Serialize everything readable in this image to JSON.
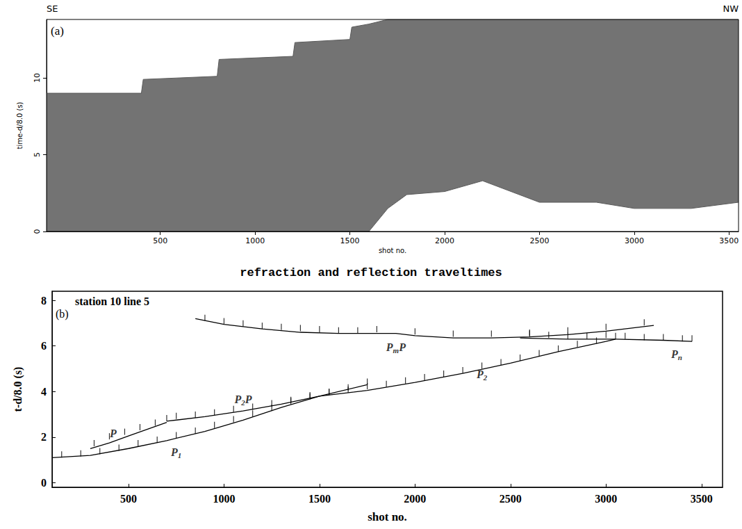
{
  "chart_data": [
    {
      "type": "area",
      "panel": "(a)",
      "annotations": [
        "SE",
        "NW"
      ],
      "xlabel": "shot no.",
      "ylabel": "time-d/8.0 (s)",
      "xlim": [
        -100,
        3550
      ],
      "ylim": [
        0,
        13.8
      ],
      "xticks": [
        500,
        1000,
        1500,
        2000,
        2500,
        3000,
        3500
      ],
      "yticks": [
        0,
        5,
        10
      ],
      "color": "#5a5a5a",
      "band": {
        "x": [
          -100,
          400,
          410,
          800,
          810,
          1200,
          1210,
          1500,
          1510,
          1600,
          1700,
          1800,
          2000,
          2200,
          2500,
          2800,
          3000,
          3300,
          3550
        ],
        "lower": [
          0,
          0,
          0,
          0,
          0,
          0,
          0,
          0,
          0,
          0,
          1.5,
          2.4,
          2.6,
          3.3,
          1.9,
          1.9,
          1.5,
          1.5,
          1.9
        ],
        "upper": [
          9.0,
          9.0,
          9.9,
          10.1,
          11.2,
          11.4,
          12.3,
          12.5,
          13.3,
          13.5,
          13.8,
          13.8,
          13.8,
          13.8,
          13.8,
          13.8,
          13.8,
          13.8,
          13.8
        ]
      }
    },
    {
      "type": "line",
      "panel": "(b)",
      "title": "refraction and reflection traveltimes",
      "annotations": [
        "station 10 line 5"
      ],
      "xlabel": "shot no.",
      "ylabel": "t-d/8.0 (s)",
      "xlim": [
        100,
        3610
      ],
      "ylim": [
        -0.2,
        8.4
      ],
      "xticks": [
        500,
        1000,
        1500,
        2000,
        2500,
        3000,
        3500
      ],
      "yticks": [
        0,
        2,
        4,
        6,
        8
      ],
      "grid": false,
      "series": [
        {
          "name": "P",
          "color": "#000000",
          "x": [
            300,
            400,
            500,
            600,
            700
          ],
          "values": [
            1.5,
            1.75,
            2.05,
            2.35,
            2.65
          ],
          "picks": {
            "x": [
              320,
              400,
              480,
              560,
              640,
              700
            ],
            "y": [
              1.6,
              1.9,
              2.1,
              2.3,
              2.5,
              2.7
            ]
          },
          "label_at": [
            420,
            2.15
          ]
        },
        {
          "name": "P1",
          "color": "#000000",
          "x": [
            100,
            300,
            500,
            700,
            900,
            1100,
            1300,
            1500
          ],
          "values": [
            1.1,
            1.2,
            1.5,
            1.85,
            2.25,
            2.75,
            3.3,
            3.8
          ],
          "picks": {
            "x": [
              150,
              250,
              350,
              450,
              550,
              650,
              750,
              850,
              950,
              1050,
              1150,
              1250,
              1350,
              1450
            ],
            "y": [
              1.1,
              1.15,
              1.25,
              1.4,
              1.6,
              1.75,
              1.95,
              2.15,
              2.4,
              2.65,
              2.9,
              3.15,
              3.45,
              3.7
            ]
          },
          "label_at": [
            750,
            1.35
          ]
        },
        {
          "name": "P2P",
          "color": "#000000",
          "x": [
            700,
            900,
            1100,
            1300,
            1500,
            1750
          ],
          "values": [
            2.7,
            2.9,
            3.15,
            3.45,
            3.8,
            4.3
          ],
          "picks": {
            "x": [
              750,
              850,
              950,
              1050,
              1150,
              1250,
              1350,
              1450,
              1550,
              1650,
              1750
            ],
            "y": [
              2.8,
              2.85,
              2.95,
              3.1,
              3.2,
              3.35,
              3.5,
              3.65,
              3.85,
              4.05,
              4.3
            ]
          },
          "label_at": [
            1100,
            3.65
          ]
        },
        {
          "name": "P2",
          "color": "#000000",
          "x": [
            1500,
            1750,
            2000,
            2250,
            2500,
            2750,
            3000,
            3050
          ],
          "values": [
            3.8,
            4.05,
            4.4,
            4.8,
            5.25,
            5.75,
            6.2,
            6.3
          ],
          "picks": {
            "x": [
              1550,
              1650,
              1750,
              1850,
              1950,
              2050,
              2150,
              2250,
              2350,
              2450,
              2550,
              2650,
              2750,
              2850,
              2950,
              3050
            ],
            "y": [
              3.85,
              3.95,
              4.1,
              4.2,
              4.35,
              4.5,
              4.65,
              4.8,
              5.0,
              5.15,
              5.35,
              5.55,
              5.75,
              5.95,
              6.1,
              6.3
            ]
          },
          "label_at": [
            2350,
            4.75
          ]
        },
        {
          "name": "PmP",
          "color": "#000000",
          "x": [
            850,
            1000,
            1200,
            1400,
            1600,
            1800,
            1900,
            2000,
            2200,
            2400,
            2600,
            2800,
            3000,
            3250
          ],
          "values": [
            7.2,
            6.95,
            6.75,
            6.6,
            6.55,
            6.55,
            6.55,
            6.45,
            6.35,
            6.35,
            6.4,
            6.5,
            6.65,
            6.9
          ],
          "picks": {
            "x": [
              900,
              1000,
              1100,
              1200,
              1300,
              1400,
              1500,
              1600,
              1700,
              1800,
              2000,
              2200,
              2400,
              2600,
              2800,
              3000,
              3200
            ],
            "y": [
              7.1,
              6.95,
              6.85,
              6.75,
              6.7,
              6.65,
              6.6,
              6.55,
              6.55,
              6.6,
              6.5,
              6.4,
              6.4,
              6.45,
              6.55,
              6.7,
              6.9
            ]
          },
          "label_at": [
            1900,
            5.95
          ]
        },
        {
          "name": "Pn",
          "color": "#000000",
          "x": [
            2550,
            2800,
            3050,
            3300,
            3450
          ],
          "values": [
            6.35,
            6.3,
            6.3,
            6.25,
            6.2
          ],
          "picks": {
            "x": [
              2600,
              2700,
              2800,
              2900,
              3000,
              3100,
              3200,
              3300,
              3400,
              3450
            ],
            "y": [
              6.4,
              6.35,
              6.3,
              6.3,
              6.35,
              6.3,
              6.25,
              6.25,
              6.2,
              6.2
            ]
          },
          "label_at": [
            3370,
            5.65
          ]
        }
      ]
    }
  ]
}
